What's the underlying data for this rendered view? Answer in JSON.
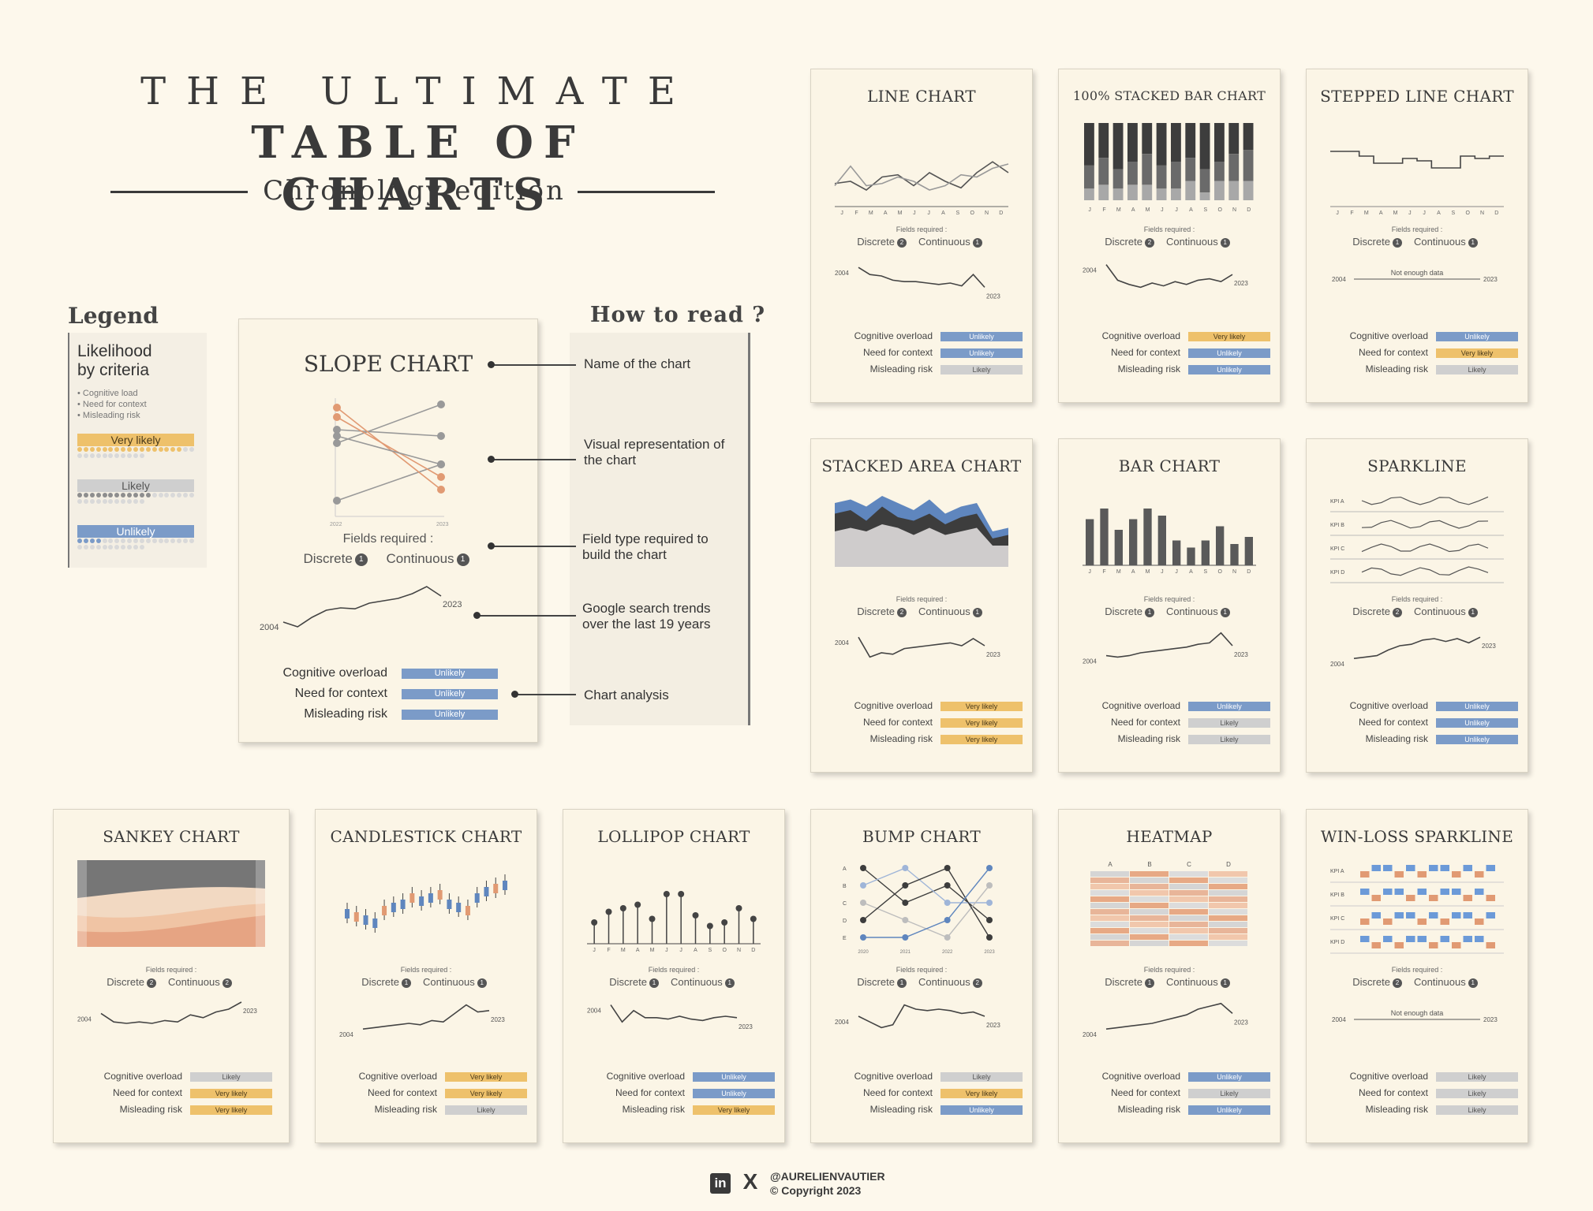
{
  "header": {
    "line1": "THE ULTIMATE",
    "line2": "TABLE OF CHARTS",
    "line3": "Chronology edition"
  },
  "legend": {
    "title": "Legend",
    "heading": "Likelihood by criteria",
    "criteria": [
      "Cognitive load",
      "Need for context",
      "Misleading risk"
    ],
    "levels": [
      {
        "label": "Very likely",
        "filled": 17
      },
      {
        "label": "Likely",
        "filled": 12
      },
      {
        "label": "Unlikely",
        "filled": 4
      }
    ]
  },
  "howto": {
    "title": "How to read ?",
    "items": [
      "Name of the chart",
      "Visual representation of the chart",
      "Field type required to build the chart",
      "Google search trends over the last 19 years",
      "Chart analysis"
    ]
  },
  "fields_label": "Fields required :",
  "discrete_label": "Discrete",
  "continuous_label": "Continuous",
  "criteria_labels": [
    "Cognitive overload",
    "Need for context",
    "Misleading risk"
  ],
  "year_start": "2004",
  "year_end": "2023",
  "not_enough": "Not enough data",
  "month_ticks": [
    "J",
    "F",
    "M",
    "A",
    "M",
    "J",
    "J",
    "A",
    "S",
    "O",
    "N",
    "D"
  ],
  "slope": {
    "title": "SLOPE CHART",
    "years": [
      "2022",
      "2023"
    ],
    "discrete": "1",
    "continuous": "1",
    "ratings": [
      "Unlikely",
      "Unlikely",
      "Unlikely"
    ]
  },
  "cards": [
    {
      "title": "LINE CHART",
      "discrete": "2",
      "continuous": "1",
      "ratings": [
        "Unlikely",
        "Unlikely",
        "Likely"
      ]
    },
    {
      "title": "100% STACKED BAR CHART",
      "discrete": "2",
      "continuous": "1",
      "ratings": [
        "Very likely",
        "Unlikely",
        "Unlikely"
      ]
    },
    {
      "title": "STEPPED LINE CHART",
      "discrete": "1",
      "continuous": "1",
      "ratings": [
        "Unlikely",
        "Very likely",
        "Likely"
      ]
    },
    {
      "title": "STACKED AREA CHART",
      "discrete": "2",
      "continuous": "1",
      "ratings": [
        "Very likely",
        "Very likely",
        "Very likely"
      ]
    },
    {
      "title": "BAR CHART",
      "discrete": "1",
      "continuous": "1",
      "ratings": [
        "Unlikely",
        "Likely",
        "Likely"
      ]
    },
    {
      "title": "SPARKLINE",
      "discrete": "2",
      "continuous": "1",
      "ratings": [
        "Unlikely",
        "Unlikely",
        "Unlikely"
      ],
      "kpis": [
        "KPI A",
        "KPI B",
        "KPI C",
        "KPI D"
      ]
    },
    {
      "title": "SANKEY CHART",
      "discrete": "2",
      "continuous": "2",
      "ratings": [
        "Likely",
        "Very likely",
        "Very likely"
      ]
    },
    {
      "title": "CANDLESTICK CHART",
      "discrete": "1",
      "continuous": "1",
      "ratings": [
        "Very likely",
        "Very likely",
        "Likely"
      ]
    },
    {
      "title": "LOLLIPOP CHART",
      "discrete": "1",
      "continuous": "1",
      "ratings": [
        "Unlikely",
        "Unlikely",
        "Very likely"
      ]
    },
    {
      "title": "BUMP CHART",
      "discrete": "1",
      "continuous": "2",
      "ratings": [
        "Likely",
        "Very likely",
        "Unlikely"
      ],
      "rows": [
        "A",
        "B",
        "C",
        "D",
        "E"
      ],
      "years": [
        "2020",
        "2021",
        "2022",
        "2023"
      ]
    },
    {
      "title": "HEATMAP",
      "discrete": "1",
      "continuous": "1",
      "ratings": [
        "Unlikely",
        "Likely",
        "Unlikely"
      ],
      "cols": [
        "A",
        "B",
        "C",
        "D"
      ]
    },
    {
      "title": "WIN-LOSS SPARKLINE",
      "discrete": "2",
      "continuous": "1",
      "ratings": [
        "Likely",
        "Likely",
        "Likely"
      ],
      "kpis": [
        "KPI A",
        "KPI B",
        "KPI C",
        "KPI D"
      ]
    }
  ],
  "footer": {
    "handle": "@AURELIENVAUTIER",
    "copyright": "© Copyright 2023"
  },
  "colors": {
    "very_likely": "#eec16b",
    "likely": "#cfcfcf",
    "unlikely": "#7b9bc8",
    "accent": "#e19a73",
    "dark": "#3d3d3d"
  }
}
